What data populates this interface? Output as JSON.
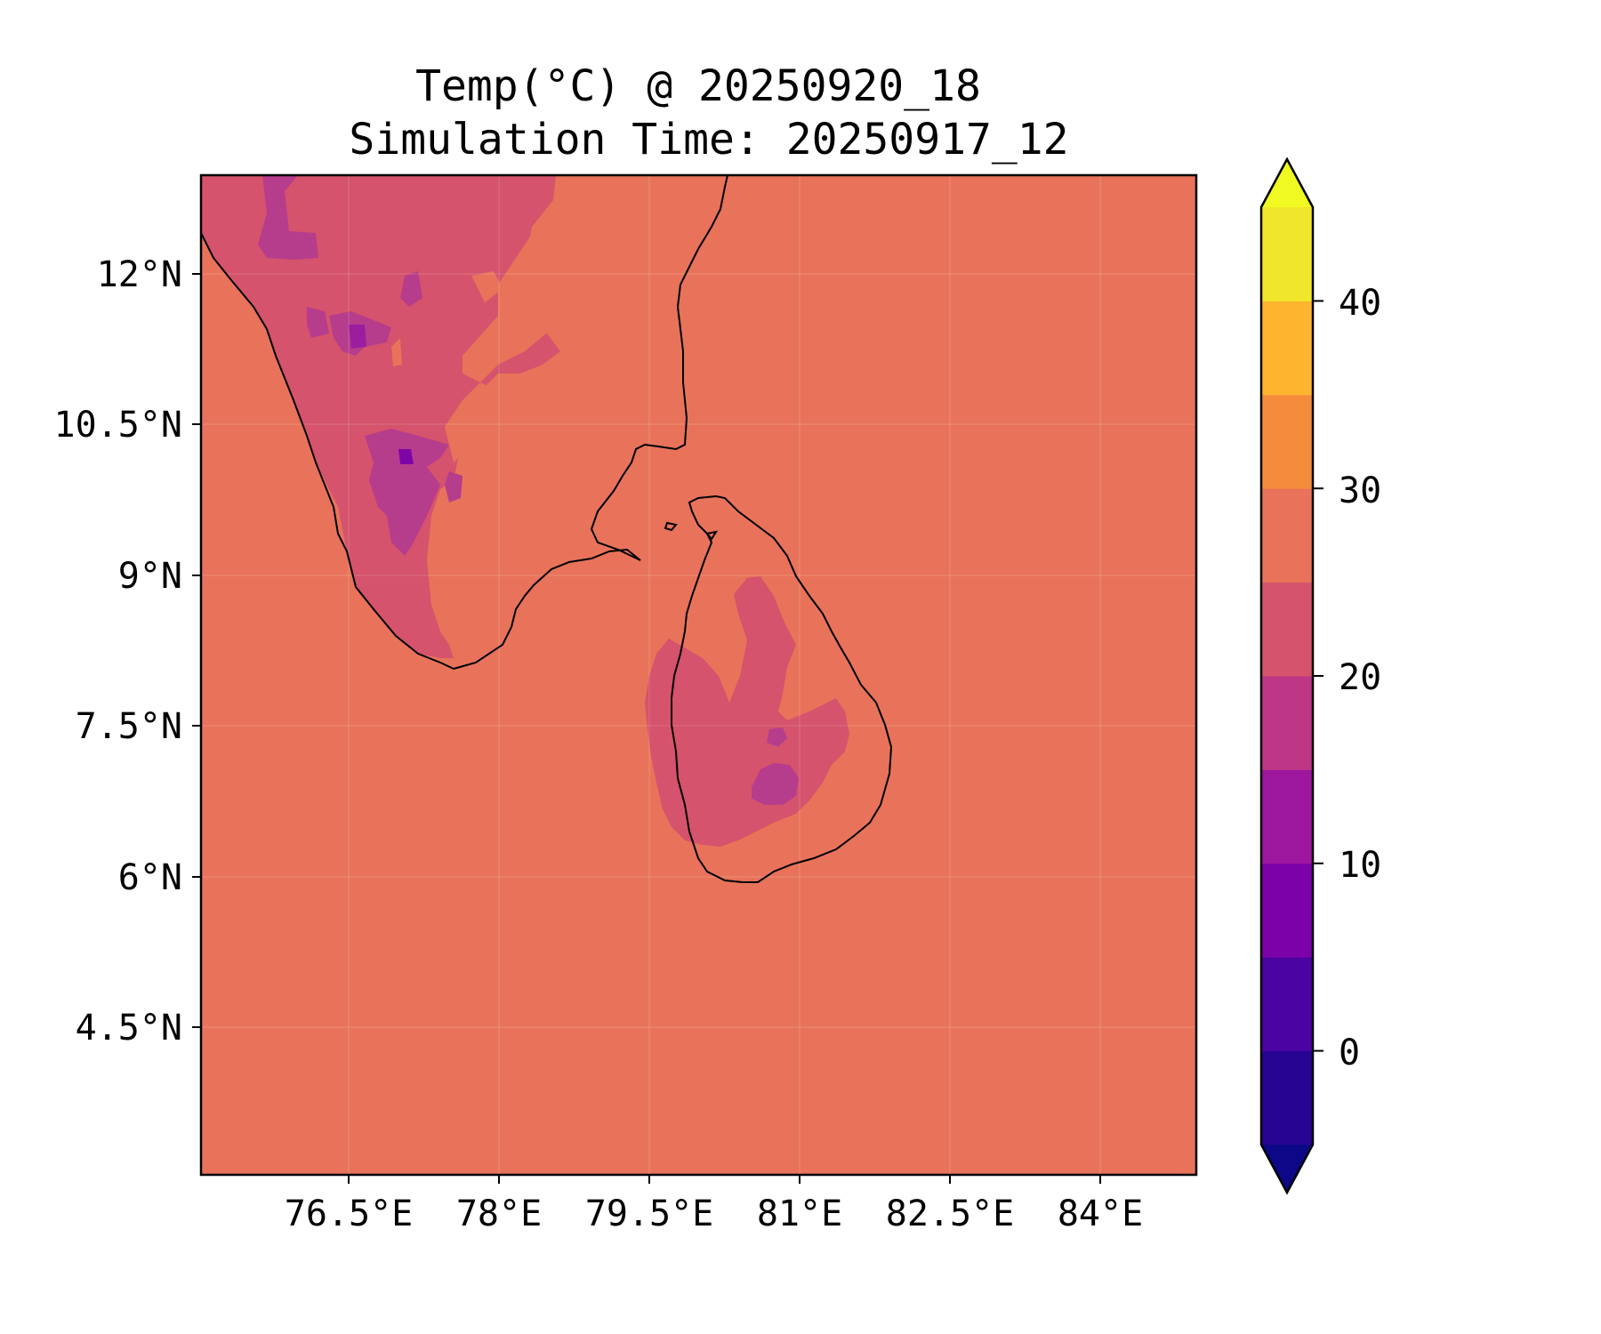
{
  "title_line1": "Temp(°C) @ 20250920_18",
  "title_line2": "Simulation Time: 20250917_12",
  "map": {
    "lon_ticks": [
      "76.5°E",
      "78°E",
      "79.5°E",
      "81°E",
      "82.5°E",
      "84°E"
    ],
    "lat_ticks": [
      "12°N",
      "10.5°N",
      "9°N",
      "7.5°N",
      "6°N",
      "4.5°N"
    ],
    "lon_range": [
      75.0,
      84.9
    ],
    "lat_range": [
      3.05,
      13.0
    ],
    "ocean_color": "#e8735a",
    "land_warm_color": "#d5536c",
    "land_mid_color": "#b63d8b",
    "land_cool_color": "#9b1e9f",
    "land_coldest_color": "#7d05a8",
    "coastline_color": "#000000",
    "gridlines": true
  },
  "colorbar": {
    "tick_labels": [
      "40",
      "30",
      "20",
      "10",
      "0"
    ],
    "levels": [
      -5,
      0,
      5,
      10,
      15,
      20,
      25,
      30,
      35,
      40,
      45
    ],
    "extend": "both",
    "colors": [
      "#0d0887",
      "#270592",
      "#4b03a1",
      "#7a02a8",
      "#9c179e",
      "#bd3786",
      "#d5536c",
      "#e8735a",
      "#f58c3b",
      "#fdb42f",
      "#f0e62b",
      "#f0f921"
    ]
  }
}
